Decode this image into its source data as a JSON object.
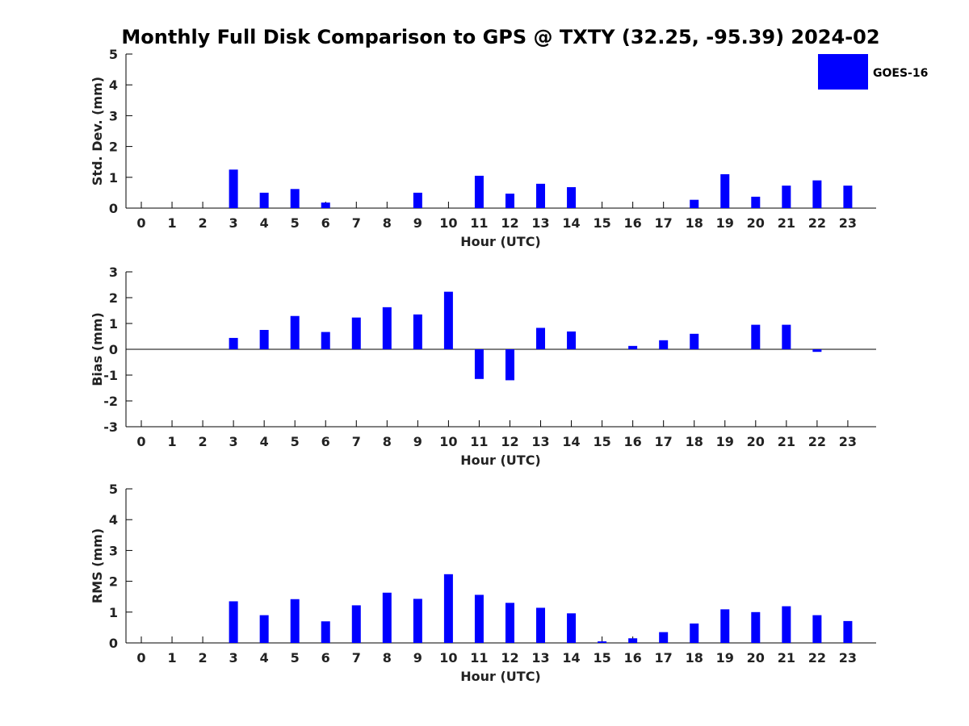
{
  "chart_data": {
    "type": "bar",
    "title": "Monthly Full Disk Comparison to GPS @ TXTY (32.25, -95.39) 2024-02",
    "legend": {
      "label": "GOES-16",
      "position": "top-right"
    },
    "series_color": "#0000ff",
    "categories": [
      "0",
      "1",
      "2",
      "3",
      "4",
      "5",
      "6",
      "7",
      "8",
      "9",
      "10",
      "11",
      "12",
      "13",
      "14",
      "15",
      "16",
      "17",
      "18",
      "19",
      "20",
      "21",
      "22",
      "23"
    ],
    "panels": [
      {
        "name": "std-dev",
        "ylabel": "Std. Dev. (mm)",
        "xlabel": "Hour (UTC)",
        "ylim": [
          0,
          5
        ],
        "yticks": [
          "0",
          "1",
          "2",
          "3",
          "4",
          "5"
        ],
        "zero_line": false,
        "values": [
          0,
          0,
          0,
          1.25,
          0.5,
          0.62,
          0.18,
          0,
          0,
          0.5,
          0,
          1.05,
          0.47,
          0.79,
          0.68,
          0,
          0,
          0,
          0.27,
          1.1,
          0.37,
          0.73,
          0.9,
          0.73
        ]
      },
      {
        "name": "bias",
        "ylabel": "Bias (mm)",
        "xlabel": "Hour (UTC)",
        "ylim": [
          -3,
          3
        ],
        "yticks": [
          "-3",
          "-2",
          "-1",
          "0",
          "1",
          "2",
          "3"
        ],
        "zero_line": true,
        "values": [
          0,
          0,
          0,
          0.44,
          0.75,
          1.29,
          0.67,
          1.23,
          1.63,
          1.35,
          2.23,
          -1.15,
          -1.2,
          0.83,
          0.69,
          0,
          0.13,
          0.35,
          0.6,
          0,
          0.95,
          0.95,
          -0.1,
          0
        ]
      },
      {
        "name": "rms",
        "ylabel": "RMS (mm)",
        "xlabel": "Hour (UTC)",
        "ylim": [
          0,
          5
        ],
        "yticks": [
          "0",
          "1",
          "2",
          "3",
          "4",
          "5"
        ],
        "zero_line": false,
        "values": [
          0,
          0,
          0,
          1.35,
          0.9,
          1.42,
          0.7,
          1.22,
          1.63,
          1.43,
          2.23,
          1.56,
          1.3,
          1.14,
          0.96,
          0.05,
          0.15,
          0.35,
          0.63,
          1.09,
          1.0,
          1.19,
          0.9,
          0.71
        ]
      }
    ]
  }
}
